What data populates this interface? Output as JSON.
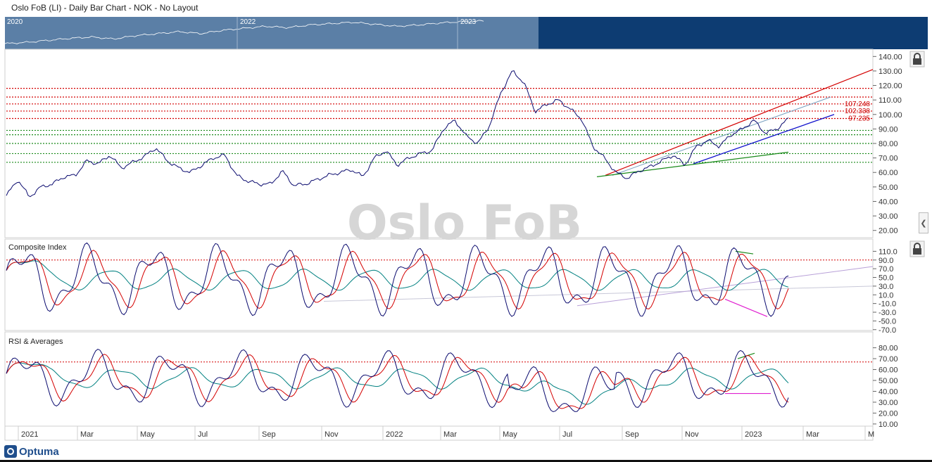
{
  "header": {
    "title": "Oslo FoB (LI) - Daily Bar Chart - NOK - No Layout"
  },
  "navigator": {
    "years": [
      "2020",
      "2022",
      "2023"
    ],
    "selected_region_color": "#5b7fa6",
    "background_color": "#0d3c72"
  },
  "watermark": "Oslo FoB",
  "brand": {
    "logo_text": "Optuma"
  },
  "colors": {
    "price": "#0a0a6e",
    "red": "#d40000",
    "green": "#1a8a1a",
    "teal": "#008080",
    "blue": "#1111cc",
    "magenta": "#e020d0",
    "lilac": "#b8a0d8"
  },
  "chart_data": [
    {
      "type": "line",
      "panel": "price",
      "title": "",
      "x_tick_labels": [
        "2021",
        "Mar",
        "May",
        "Jul",
        "Sep",
        "Nov",
        "2022",
        "Mar",
        "May",
        "Jul",
        "Sep",
        "Nov",
        "2023",
        "Mar",
        "M"
      ],
      "y_ticks": [
        20,
        30,
        40,
        50,
        60,
        70,
        80,
        90,
        100,
        110,
        120,
        130,
        140
      ],
      "y_tick_labels": [
        "20.00",
        "30.00",
        "40.00",
        "50.00",
        "60.00",
        "70.00",
        "80.00",
        "90.00",
        "100.00",
        "110.00",
        "120.00",
        "130.00",
        "140.00"
      ],
      "ylim": [
        15,
        145
      ],
      "series": [
        {
          "values": [
            44,
            55,
            43,
            50,
            52,
            57,
            58,
            68,
            66,
            72,
            63,
            67,
            71,
            77,
            68,
            63,
            60,
            65,
            70,
            72,
            58,
            54,
            52,
            52,
            61,
            51,
            52,
            55,
            58,
            60,
            62,
            57,
            70,
            75,
            65,
            70,
            73,
            75,
            90,
            96,
            85,
            80,
            92,
            115,
            130,
            122,
            102,
            107,
            110,
            104,
            97,
            78,
            70,
            60,
            56,
            61,
            64,
            68,
            72,
            65,
            78,
            82,
            78,
            86,
            90,
            96,
            87,
            90,
            97
          ]
        }
      ],
      "levels_red": [
        97.235,
        102.338,
        107.248,
        112,
        118
      ],
      "levels_red_labels": [
        "97.235",
        "102.338",
        "107.248"
      ],
      "levels_green": [
        67,
        73,
        80,
        86,
        89
      ],
      "grid": false
    },
    {
      "type": "line",
      "panel": "composite",
      "title": "Composite Index",
      "y_ticks": [
        -70,
        -50,
        -30,
        -10,
        10,
        30,
        50,
        70,
        90,
        110
      ],
      "y_tick_labels": [
        "-70.0",
        "-50.0",
        "-30.0",
        "-10.0",
        "10.0",
        "30.0",
        "50.0",
        "70.0",
        "90.0",
        "110.0"
      ],
      "ylim": [
        -72,
        130
      ],
      "reference_level": 90
    },
    {
      "type": "line",
      "panel": "rsi",
      "title": "RSI & Averages",
      "y_ticks": [
        10,
        20,
        30,
        40,
        50,
        60,
        70,
        80
      ],
      "y_tick_labels": [
        "10.00",
        "20.00",
        "30.00",
        "40.00",
        "50.00",
        "60.00",
        "70.00",
        "80.00"
      ],
      "ylim": [
        8,
        92
      ],
      "reference_level": 67
    }
  ]
}
